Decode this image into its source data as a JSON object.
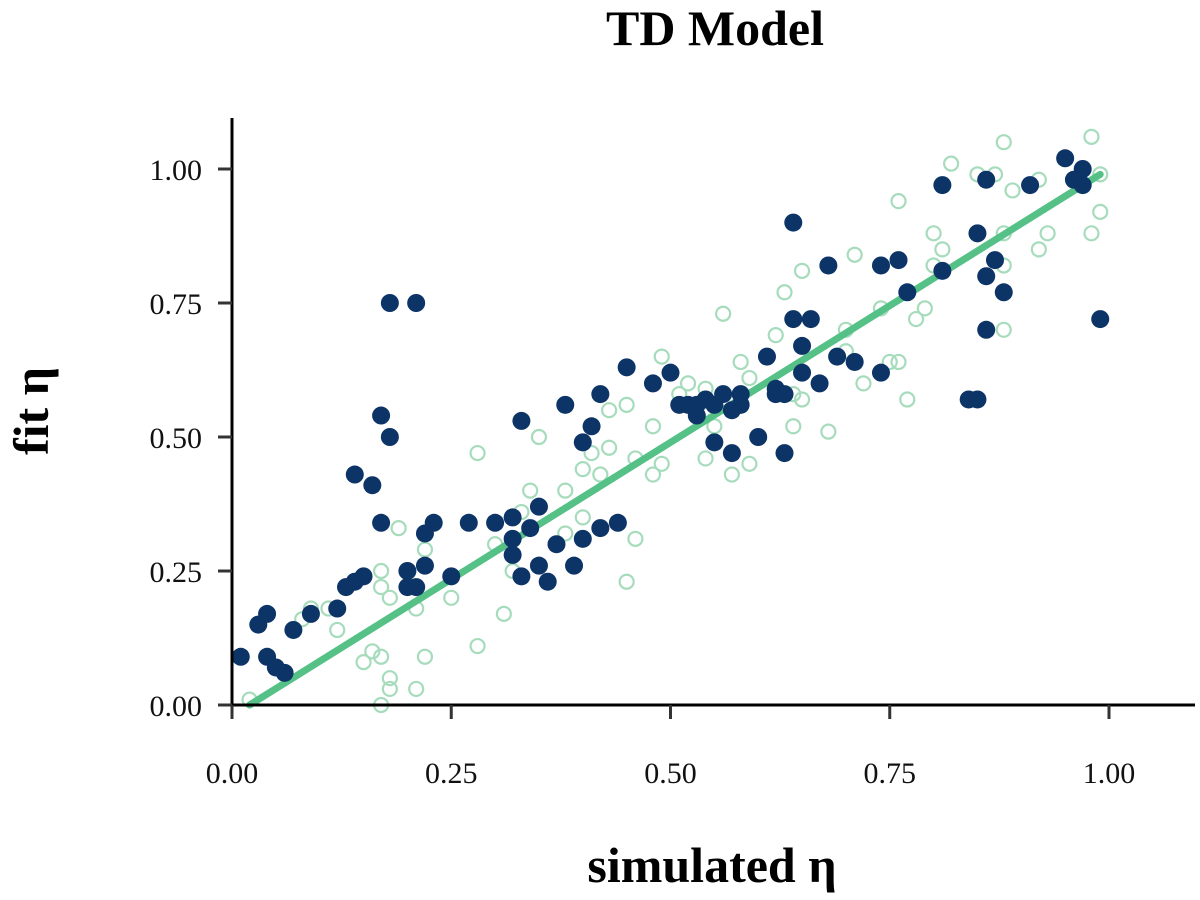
{
  "chart_data": {
    "type": "scatter",
    "title": "TD Model",
    "xlabel": "simulated η",
    "ylabel": "fit η",
    "xlim": [
      0,
      1.1
    ],
    "ylim": [
      0,
      1.1
    ],
    "xticks": [
      0,
      0.25,
      0.5,
      0.75,
      1.0
    ],
    "xtick_labels": [
      "0.00",
      "0.25",
      "0.50",
      "0.75",
      "1.00"
    ],
    "yticks": [
      0,
      0.25,
      0.5,
      0.75,
      1.0
    ],
    "ytick_labels": [
      "0.00",
      "0.25",
      "0.50",
      "0.75",
      "1.00"
    ],
    "grid": false,
    "colors": {
      "filled": "#0d3466",
      "hollow": "#a6dcbc",
      "line": "#55c186"
    },
    "fit_line": {
      "x": [
        0.02,
        0.99
      ],
      "y": [
        0.0,
        0.99
      ]
    },
    "series": [
      {
        "marker": "filled",
        "points": [
          [
            0.01,
            0.09
          ],
          [
            0.03,
            0.15
          ],
          [
            0.04,
            0.17
          ],
          [
            0.04,
            0.09
          ],
          [
            0.05,
            0.07
          ],
          [
            0.06,
            0.06
          ],
          [
            0.07,
            0.14
          ],
          [
            0.09,
            0.17
          ],
          [
            0.12,
            0.18
          ],
          [
            0.13,
            0.22
          ],
          [
            0.14,
            0.43
          ],
          [
            0.14,
            0.23
          ],
          [
            0.15,
            0.24
          ],
          [
            0.16,
            0.41
          ],
          [
            0.17,
            0.54
          ],
          [
            0.17,
            0.34
          ],
          [
            0.18,
            0.75
          ],
          [
            0.18,
            0.5
          ],
          [
            0.2,
            0.25
          ],
          [
            0.2,
            0.22
          ],
          [
            0.21,
            0.75
          ],
          [
            0.21,
            0.22
          ],
          [
            0.22,
            0.32
          ],
          [
            0.22,
            0.26
          ],
          [
            0.23,
            0.34
          ],
          [
            0.25,
            0.24
          ],
          [
            0.27,
            0.34
          ],
          [
            0.3,
            0.34
          ],
          [
            0.32,
            0.35
          ],
          [
            0.32,
            0.31
          ],
          [
            0.32,
            0.28
          ],
          [
            0.33,
            0.24
          ],
          [
            0.33,
            0.53
          ],
          [
            0.34,
            0.33
          ],
          [
            0.35,
            0.26
          ],
          [
            0.35,
            0.37
          ],
          [
            0.36,
            0.23
          ],
          [
            0.37,
            0.3
          ],
          [
            0.38,
            0.56
          ],
          [
            0.39,
            0.26
          ],
          [
            0.4,
            0.31
          ],
          [
            0.4,
            0.49
          ],
          [
            0.41,
            0.52
          ],
          [
            0.42,
            0.58
          ],
          [
            0.42,
            0.33
          ],
          [
            0.44,
            0.34
          ],
          [
            0.45,
            0.63
          ],
          [
            0.48,
            0.6
          ],
          [
            0.5,
            0.62
          ],
          [
            0.51,
            0.56
          ],
          [
            0.52,
            0.56
          ],
          [
            0.53,
            0.54
          ],
          [
            0.53,
            0.56
          ],
          [
            0.54,
            0.57
          ],
          [
            0.55,
            0.49
          ],
          [
            0.55,
            0.56
          ],
          [
            0.56,
            0.58
          ],
          [
            0.57,
            0.47
          ],
          [
            0.57,
            0.55
          ],
          [
            0.58,
            0.56
          ],
          [
            0.58,
            0.58
          ],
          [
            0.6,
            0.5
          ],
          [
            0.61,
            0.65
          ],
          [
            0.62,
            0.59
          ],
          [
            0.62,
            0.58
          ],
          [
            0.63,
            0.47
          ],
          [
            0.63,
            0.58
          ],
          [
            0.64,
            0.72
          ],
          [
            0.64,
            0.9
          ],
          [
            0.65,
            0.62
          ],
          [
            0.65,
            0.67
          ],
          [
            0.66,
            0.72
          ],
          [
            0.67,
            0.6
          ],
          [
            0.68,
            0.82
          ],
          [
            0.69,
            0.65
          ],
          [
            0.71,
            0.64
          ],
          [
            0.74,
            0.62
          ],
          [
            0.74,
            0.82
          ],
          [
            0.76,
            0.83
          ],
          [
            0.77,
            0.77
          ],
          [
            0.81,
            0.97
          ],
          [
            0.81,
            0.81
          ],
          [
            0.84,
            0.57
          ],
          [
            0.85,
            0.57
          ],
          [
            0.85,
            0.88
          ],
          [
            0.86,
            0.8
          ],
          [
            0.86,
            0.7
          ],
          [
            0.86,
            0.98
          ],
          [
            0.87,
            0.83
          ],
          [
            0.88,
            0.77
          ],
          [
            0.91,
            0.97
          ],
          [
            0.95,
            1.02
          ],
          [
            0.96,
            0.98
          ],
          [
            0.97,
            1.0
          ],
          [
            0.97,
            0.97
          ],
          [
            0.99,
            0.72
          ]
        ]
      },
      {
        "marker": "hollow",
        "points": [
          [
            0.02,
            0.01
          ],
          [
            0.05,
            0.07
          ],
          [
            0.08,
            0.16
          ],
          [
            0.09,
            0.18
          ],
          [
            0.11,
            0.18
          ],
          [
            0.12,
            0.14
          ],
          [
            0.15,
            0.08
          ],
          [
            0.16,
            0.1
          ],
          [
            0.17,
            0.09
          ],
          [
            0.17,
            0.0
          ],
          [
            0.18,
            0.03
          ],
          [
            0.18,
            0.05
          ],
          [
            0.17,
            0.25
          ],
          [
            0.17,
            0.22
          ],
          [
            0.18,
            0.2
          ],
          [
            0.19,
            0.33
          ],
          [
            0.2,
            0.22
          ],
          [
            0.21,
            0.18
          ],
          [
            0.21,
            0.03
          ],
          [
            0.22,
            0.09
          ],
          [
            0.22,
            0.29
          ],
          [
            0.25,
            0.2
          ],
          [
            0.28,
            0.47
          ],
          [
            0.28,
            0.11
          ],
          [
            0.3,
            0.3
          ],
          [
            0.31,
            0.17
          ],
          [
            0.32,
            0.25
          ],
          [
            0.33,
            0.36
          ],
          [
            0.34,
            0.4
          ],
          [
            0.35,
            0.5
          ],
          [
            0.38,
            0.32
          ],
          [
            0.38,
            0.4
          ],
          [
            0.4,
            0.44
          ],
          [
            0.4,
            0.35
          ],
          [
            0.41,
            0.47
          ],
          [
            0.42,
            0.43
          ],
          [
            0.43,
            0.48
          ],
          [
            0.43,
            0.55
          ],
          [
            0.45,
            0.56
          ],
          [
            0.45,
            0.23
          ],
          [
            0.46,
            0.46
          ],
          [
            0.46,
            0.31
          ],
          [
            0.48,
            0.43
          ],
          [
            0.48,
            0.52
          ],
          [
            0.49,
            0.45
          ],
          [
            0.49,
            0.65
          ],
          [
            0.51,
            0.58
          ],
          [
            0.52,
            0.6
          ],
          [
            0.54,
            0.59
          ],
          [
            0.54,
            0.46
          ],
          [
            0.55,
            0.52
          ],
          [
            0.56,
            0.73
          ],
          [
            0.57,
            0.43
          ],
          [
            0.58,
            0.64
          ],
          [
            0.59,
            0.45
          ],
          [
            0.59,
            0.61
          ],
          [
            0.62,
            0.69
          ],
          [
            0.63,
            0.77
          ],
          [
            0.64,
            0.52
          ],
          [
            0.64,
            0.58
          ],
          [
            0.65,
            0.57
          ],
          [
            0.65,
            0.81
          ],
          [
            0.68,
            0.51
          ],
          [
            0.7,
            0.7
          ],
          [
            0.7,
            0.66
          ],
          [
            0.71,
            0.84
          ],
          [
            0.72,
            0.6
          ],
          [
            0.74,
            0.74
          ],
          [
            0.75,
            0.64
          ],
          [
            0.76,
            0.94
          ],
          [
            0.76,
            0.64
          ],
          [
            0.77,
            0.57
          ],
          [
            0.78,
            0.72
          ],
          [
            0.79,
            0.74
          ],
          [
            0.8,
            0.82
          ],
          [
            0.8,
            0.88
          ],
          [
            0.81,
            0.85
          ],
          [
            0.82,
            1.01
          ],
          [
            0.85,
            0.99
          ],
          [
            0.87,
            0.99
          ],
          [
            0.88,
            0.82
          ],
          [
            0.88,
            0.88
          ],
          [
            0.88,
            0.7
          ],
          [
            0.88,
            1.05
          ],
          [
            0.89,
            0.96
          ],
          [
            0.92,
            0.98
          ],
          [
            0.92,
            0.85
          ],
          [
            0.93,
            0.88
          ],
          [
            0.98,
            0.88
          ],
          [
            0.98,
            1.06
          ],
          [
            0.99,
            0.99
          ],
          [
            0.99,
            0.92
          ]
        ]
      }
    ]
  }
}
